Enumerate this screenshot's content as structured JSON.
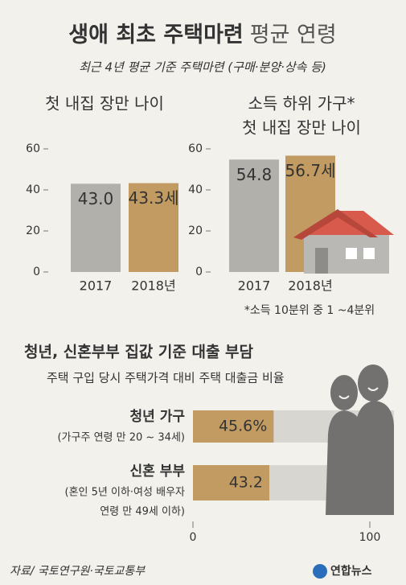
{
  "title": "생애 최초 주택마련",
  "title_suffix": "평균 연령",
  "subtitle": "최근 4년 평균 기준 주택마련 (구매·분양·상속 등)",
  "chart_data": [
    {
      "type": "bar",
      "title": [
        "첫 내집 장만 나이"
      ],
      "categories": [
        "2017",
        "2018년"
      ],
      "values": [
        43.0,
        43.3
      ],
      "value_labels": [
        "43.0",
        "43.3세"
      ],
      "colors": [
        "#b2b0ab",
        "#c19b62"
      ],
      "ylim": [
        0,
        60
      ],
      "yticks": [
        0,
        20,
        40,
        60
      ]
    },
    {
      "type": "bar",
      "title": [
        "소득 하위 가구*",
        "첫 내집 장만 나이"
      ],
      "categories": [
        "2017",
        "2018년"
      ],
      "values": [
        54.8,
        56.7
      ],
      "value_labels": [
        "54.8",
        "56.7세"
      ],
      "colors": [
        "#b2b0ab",
        "#c19b62"
      ],
      "ylim": [
        0,
        60
      ],
      "yticks": [
        0,
        20,
        40,
        60
      ],
      "note": "*소득 10분위 중 1 ~4분위"
    },
    {
      "type": "hbar",
      "title": [
        "청년, 신혼부부 집값 기준 대출 부담"
      ],
      "subtitle": "주택 구입 당시 주택가격 대비 주택 대출금 비율",
      "categories": [
        "청년 가구",
        "신혼 부부"
      ],
      "category_notes": [
        [
          "(가구주 연령 만 20 ~ 34세)"
        ],
        [
          "(혼인 5년 이하·여성 배우자",
          "연령 만 49세 이하)"
        ]
      ],
      "values": [
        45.6,
        43.2
      ],
      "value_labels": [
        "45.6%",
        "43.2"
      ],
      "color": "#c19b62",
      "track_color": "#d8d6d1",
      "xlim": [
        0,
        100
      ],
      "xticks": [
        0,
        100
      ]
    }
  ],
  "source": "자료/ 국토연구원·국토교통부",
  "logo": "연합뉴스"
}
